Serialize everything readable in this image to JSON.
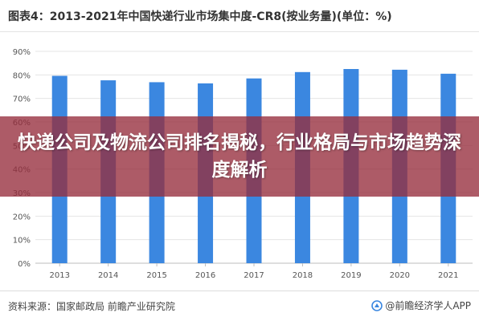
{
  "header": {
    "title": "图表4：2013-2021年中国快递行业市场集中度-CR8(按业务量)(单位：%)"
  },
  "overlay": {
    "headline": "快递公司及物流公司排名揭秘，行业格局与市场趋势深度解析"
  },
  "footer": {
    "source": "资料来源：国家邮政局 前瞻产业研究院",
    "watermark": "@前瞻经济学人APP",
    "watermark_icon": "qianzhan-logo-icon"
  },
  "colors": {
    "bar": "#3b87e0",
    "grid": "#e5e5e5",
    "axis": "#bdbdbd",
    "tick_text": "#555555",
    "overlay": "#962d3c"
  },
  "chart_data": {
    "type": "bar",
    "categories": [
      "2013",
      "2014",
      "2015",
      "2016",
      "2017",
      "2018",
      "2019",
      "2020",
      "2021"
    ],
    "values": [
      79.6,
      77.7,
      76.9,
      76.4,
      78.5,
      81.2,
      82.5,
      82.2,
      80.5
    ],
    "yticks": [
      "0%",
      "10%",
      "20%",
      "30%",
      "40%",
      "50%",
      "60%",
      "70%",
      "80%",
      "90%"
    ],
    "ylim": [
      0,
      90
    ],
    "grid": true,
    "legend": "none"
  }
}
